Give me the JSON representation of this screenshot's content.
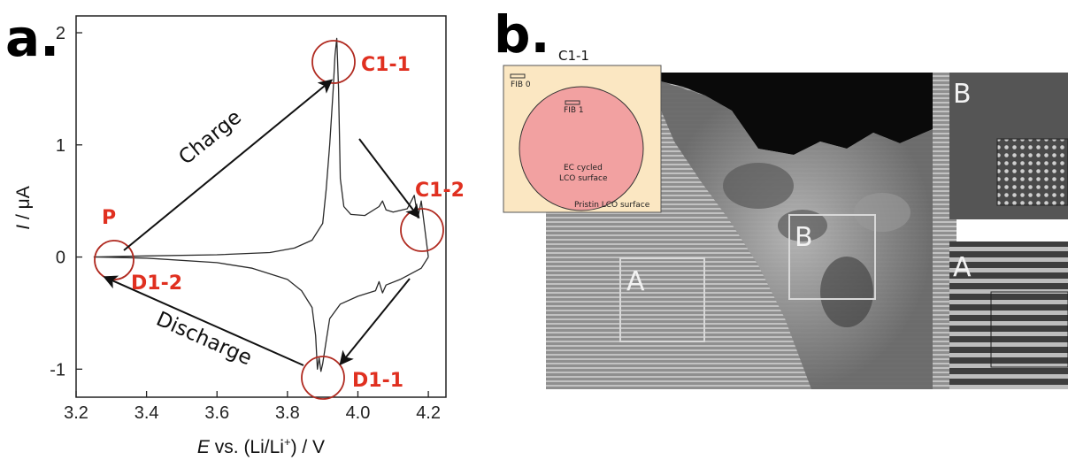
{
  "panel_a": {
    "letter": "a.",
    "ylabel_italic": "I",
    "ylabel_rest": " / μA",
    "xlabel_italic": "E",
    "xlabel_rest": " vs. (Li/Li",
    "xlabel_sup": "+",
    "xlabel_end": ") / V",
    "labels": {
      "P": "P",
      "C1_1": "C1-1",
      "C1_2": "C1-2",
      "D1_1": "D1-1",
      "D1_2": "D1-2",
      "charge": "Charge",
      "discharge": "Discharge"
    },
    "colors": {
      "annotation": "#e03020",
      "circle": "#b02a20",
      "trace": "#2a2a2a"
    }
  },
  "panel_b": {
    "letter": "b.",
    "inset": {
      "title": "C1-1",
      "fib0": "FIB 0",
      "fib1": "FIB 1",
      "ec_line1": "EC cycled",
      "ec_line2": "LCO surface",
      "pristine": "Pristin LCO surface",
      "colors": {
        "background": "#fbe7c2",
        "circle": "#f2a1a1"
      }
    },
    "box_labels": {
      "A": "A",
      "B": "B"
    },
    "side_labels": {
      "B": "B",
      "A": "A"
    }
  },
  "chart_data": {
    "type": "line",
    "title": "",
    "xlabel": "E vs. (Li/Li+) / V",
    "ylabel": "I / μA",
    "xlim": [
      3.2,
      4.25
    ],
    "ylim": [
      -1.25,
      2.15
    ],
    "x_ticks": [
      3.2,
      3.4,
      3.6,
      3.8,
      4.0,
      4.2
    ],
    "y_ticks": [
      -1,
      0,
      1,
      2
    ],
    "x_tick_labels": [
      "3.2",
      "3.4",
      "3.6",
      "3.8",
      "4.0",
      "4.2"
    ],
    "y_tick_labels": [
      "-1",
      "0",
      "1",
      "2"
    ],
    "grid": false,
    "series": [
      {
        "x": [
          3.25,
          3.4,
          3.6,
          3.75,
          3.82,
          3.87,
          3.9,
          3.91,
          3.92,
          3.93,
          3.935,
          3.94,
          3.945,
          3.95,
          3.96,
          3.98,
          4.02,
          4.06,
          4.07,
          4.08,
          4.1,
          4.14,
          4.16,
          4.17,
          4.18,
          4.2
        ],
        "y": [
          0.0,
          0.01,
          0.02,
          0.04,
          0.08,
          0.15,
          0.3,
          0.6,
          1.0,
          1.5,
          1.8,
          1.95,
          1.5,
          0.7,
          0.45,
          0.38,
          0.37,
          0.45,
          0.5,
          0.42,
          0.4,
          0.43,
          0.55,
          0.35,
          0.5,
          0.0
        ]
      },
      {
        "x": [
          4.2,
          4.18,
          4.15,
          4.12,
          4.08,
          4.07,
          4.06,
          4.05,
          4.0,
          3.95,
          3.92,
          3.91,
          3.9,
          3.895,
          3.89,
          3.885,
          3.88,
          3.87,
          3.84,
          3.8,
          3.7,
          3.6,
          3.4,
          3.25
        ],
        "y": [
          0.0,
          -0.1,
          -0.15,
          -0.2,
          -0.25,
          -0.32,
          -0.22,
          -0.3,
          -0.35,
          -0.42,
          -0.55,
          -0.75,
          -0.95,
          -1.02,
          -0.9,
          -1.0,
          -0.7,
          -0.45,
          -0.3,
          -0.2,
          -0.1,
          -0.05,
          -0.01,
          0.0
        ]
      }
    ],
    "annotations": [
      "P",
      "C1-1",
      "C1-2",
      "D1-1",
      "D1-2",
      "Charge",
      "Discharge"
    ]
  }
}
